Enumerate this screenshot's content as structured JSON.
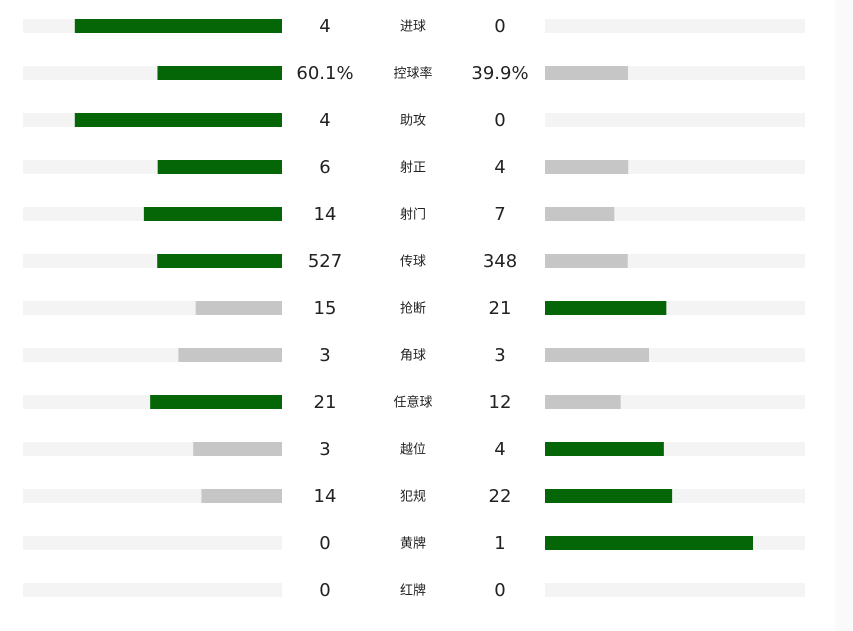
{
  "stats": {
    "colors": {
      "lead": "#056608",
      "trail": "#c6c6c6",
      "track": "#f4f4f4"
    },
    "rows": [
      {
        "label": "进球",
        "home": 4,
        "away": 0
      },
      {
        "label": "控球率",
        "home": 60.1,
        "away": 39.9,
        "home_label": "60.1%",
        "away_label": "39.9%"
      },
      {
        "label": "助攻",
        "home": 4,
        "away": 0
      },
      {
        "label": "射正",
        "home": 6,
        "away": 4
      },
      {
        "label": "射门",
        "home": 14,
        "away": 7
      },
      {
        "label": "传球",
        "home": 527,
        "away": 348
      },
      {
        "label": "抢断",
        "home": 15,
        "away": 21
      },
      {
        "label": "角球",
        "home": 3,
        "away": 3
      },
      {
        "label": "任意球",
        "home": 21,
        "away": 12
      },
      {
        "label": "越位",
        "home": 3,
        "away": 4
      },
      {
        "label": "犯规",
        "home": 14,
        "away": 22
      },
      {
        "label": "黄牌",
        "home": 0,
        "away": 1
      },
      {
        "label": "红牌",
        "home": 0,
        "away": 0
      }
    ]
  }
}
